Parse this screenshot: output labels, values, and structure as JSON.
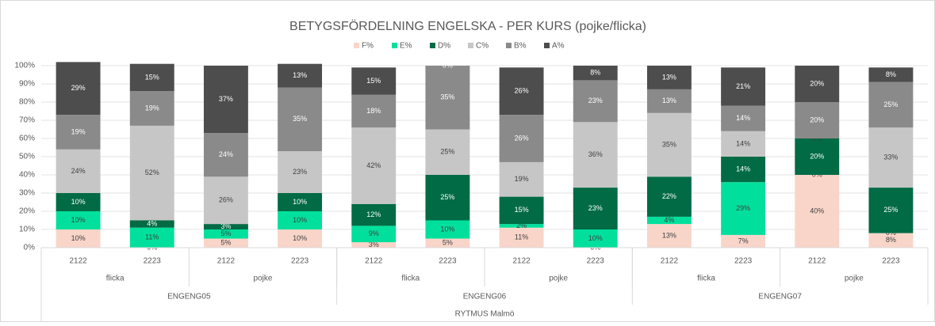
{
  "chart_data": {
    "type": "stacked_bar",
    "title": "BETYGSFÖRDELNING ENGELSKA - PER KURS (pojke/flicka)",
    "categories": [
      "2122",
      "2223",
      "2122",
      "2223",
      "2122",
      "2223",
      "2122",
      "2223",
      "2122",
      "2223",
      "2122",
      "2223"
    ],
    "gender_groups": [
      "flicka",
      "pojke",
      "flicka",
      "pojke",
      "flicka",
      "pojke"
    ],
    "course_groups": [
      "ENGENG05",
      "ENGENG06",
      "ENGENG07"
    ],
    "school": "RYTMUS Malmö",
    "series": [
      {
        "name": "F%",
        "color": "#f9d5c9",
        "values": [
          10,
          0,
          5,
          10,
          3,
          5,
          11,
          0,
          13,
          7,
          40,
          8
        ],
        "value_labels": [
          "10%",
          "0%",
          "5%",
          "10%",
          "3%",
          "5%",
          "11%",
          "0%",
          "13%",
          "7%",
          "40%",
          "8%"
        ]
      },
      {
        "name": "E%",
        "color": "#00e09c",
        "values": [
          10,
          11,
          5,
          10,
          9,
          10,
          2,
          10,
          4,
          29,
          0,
          0
        ],
        "value_labels": [
          "10%",
          "11%",
          "5%",
          "10%",
          "9%",
          "10%",
          "2%",
          "10%",
          "4%",
          "29%",
          "0%",
          "0%"
        ]
      },
      {
        "name": "D%",
        "color": "#006b45",
        "values": [
          10,
          4,
          3,
          10,
          12,
          25,
          15,
          23,
          22,
          14,
          20,
          25
        ],
        "value_labels": [
          "10%",
          "4%",
          "3%",
          "10%",
          "12%",
          "25%",
          "15%",
          "23%",
          "22%",
          "14%",
          "20%",
          "25%"
        ]
      },
      {
        "name": "C%",
        "color": "#c6c6c6",
        "values": [
          24,
          52,
          26,
          23,
          42,
          25,
          19,
          36,
          35,
          14,
          0,
          33
        ],
        "value_labels": [
          "24%",
          "52%",
          "26%",
          "23%",
          "42%",
          "25%",
          "19%",
          "36%",
          "35%",
          "14%",
          "0%",
          "33%"
        ]
      },
      {
        "name": "B%",
        "color": "#8a8a8a",
        "values": [
          19,
          19,
          24,
          35,
          18,
          35,
          26,
          23,
          13,
          14,
          20,
          25
        ],
        "value_labels": [
          "19%",
          "19%",
          "24%",
          "35%",
          "18%",
          "35%",
          "26%",
          "23%",
          "13%",
          "14%",
          "20%",
          "25%"
        ]
      },
      {
        "name": "A%",
        "color": "#4d4d4d",
        "values": [
          29,
          15,
          37,
          13,
          15,
          0,
          26,
          8,
          13,
          21,
          20,
          8
        ],
        "value_labels": [
          "29%",
          "15%",
          "37%",
          "13%",
          "15%",
          "0%",
          "26%",
          "8%",
          "13%",
          "21%",
          "20%",
          "8%"
        ]
      }
    ],
    "ylim": [
      0,
      100
    ],
    "yticks": [
      {
        "value": 0,
        "label": "0%"
      },
      {
        "value": 10,
        "label": "10%"
      },
      {
        "value": 20,
        "label": "20%"
      },
      {
        "value": 30,
        "label": "30%"
      },
      {
        "value": 40,
        "label": "40%"
      },
      {
        "value": 50,
        "label": "50%"
      },
      {
        "value": 60,
        "label": "60%"
      },
      {
        "value": 70,
        "label": "70%"
      },
      {
        "value": 80,
        "label": "80%"
      },
      {
        "value": 90,
        "label": "90%"
      },
      {
        "value": 100,
        "label": "100%"
      }
    ],
    "grid": true,
    "legend": "top"
  }
}
